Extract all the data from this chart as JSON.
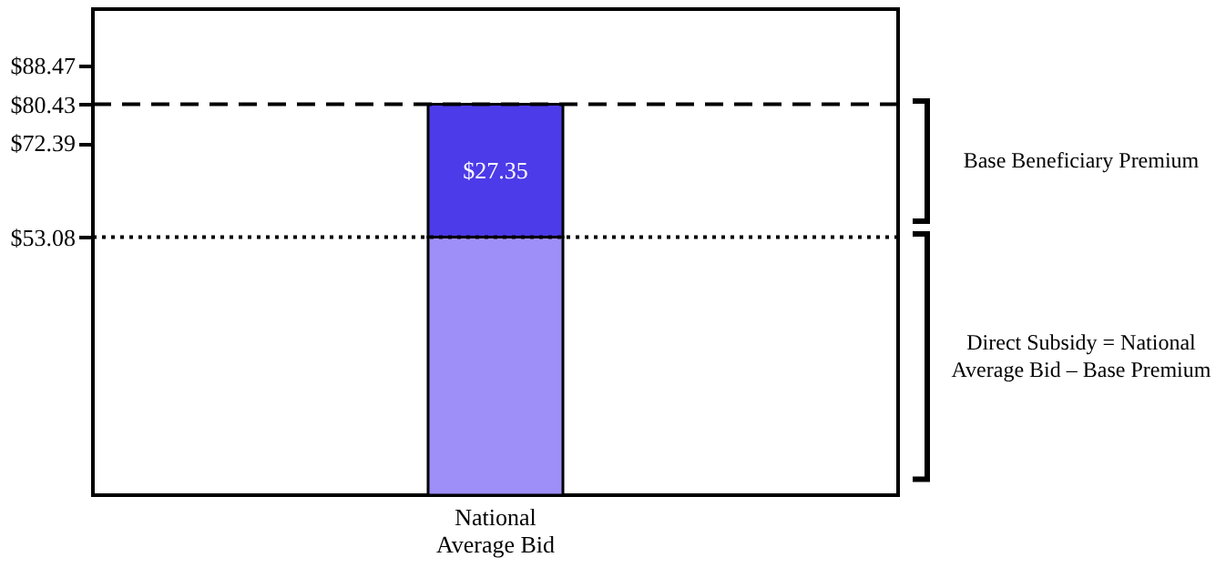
{
  "chart_data": {
    "type": "bar",
    "stacked": true,
    "categories": [
      "National Average Bid"
    ],
    "series": [
      {
        "color": "#9d8ff7",
        "values": [
          53.08
        ]
      },
      {
        "color": "#4c3be8",
        "values": [
          27.35
        ],
        "value_labels": [
          "$27.35"
        ]
      }
    ],
    "ylim": [
      0,
      100
    ],
    "yticks": [
      {
        "value": 53.08,
        "label": "$53.08"
      },
      {
        "value": 72.39,
        "label": "$72.39"
      },
      {
        "value": 80.43,
        "label": "$80.43"
      },
      {
        "value": 88.47,
        "label": "$88.47"
      }
    ],
    "ref_lines": [
      {
        "axis": "y",
        "value": 80.43,
        "line_style": "dashed"
      },
      {
        "axis": "y",
        "value": 53.08,
        "line_style": "dotted"
      }
    ],
    "annotations": [
      "Base Beneficiary Premium",
      "Direct Subsidy = National Average Bid – Base Premium"
    ],
    "grid": false,
    "legend": false
  }
}
